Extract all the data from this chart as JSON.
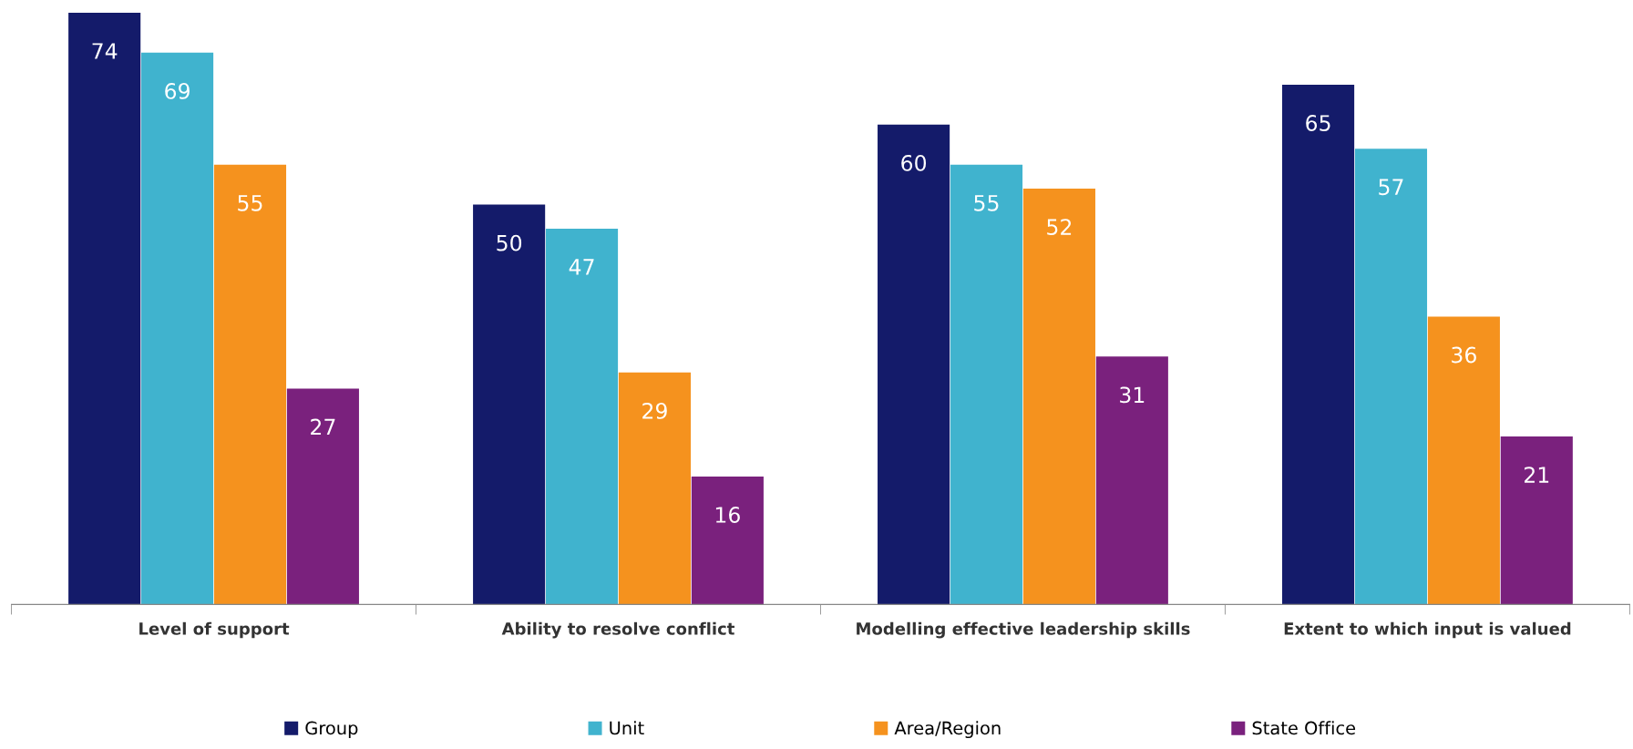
{
  "chart_data": {
    "type": "bar",
    "categories": [
      "Level of support",
      "Ability to resolve conflict",
      "Modelling effective leadership skills",
      "Extent to which input is valued"
    ],
    "series": [
      {
        "name": "Group",
        "color": "#141b6a",
        "values": [
          74,
          50,
          60,
          65
        ]
      },
      {
        "name": "Unit",
        "color": "#40b3ce",
        "values": [
          69,
          47,
          55,
          57
        ]
      },
      {
        "name": "Area/Region",
        "color": "#f5921e",
        "values": [
          55,
          29,
          52,
          36
        ]
      },
      {
        "name": "State Office",
        "color": "#7a217d",
        "values": [
          27,
          16,
          31,
          21
        ]
      }
    ],
    "ylim": [
      0,
      74
    ],
    "data_labels": true,
    "legend": "bottom",
    "grid": false,
    "tick_labels": "x"
  }
}
